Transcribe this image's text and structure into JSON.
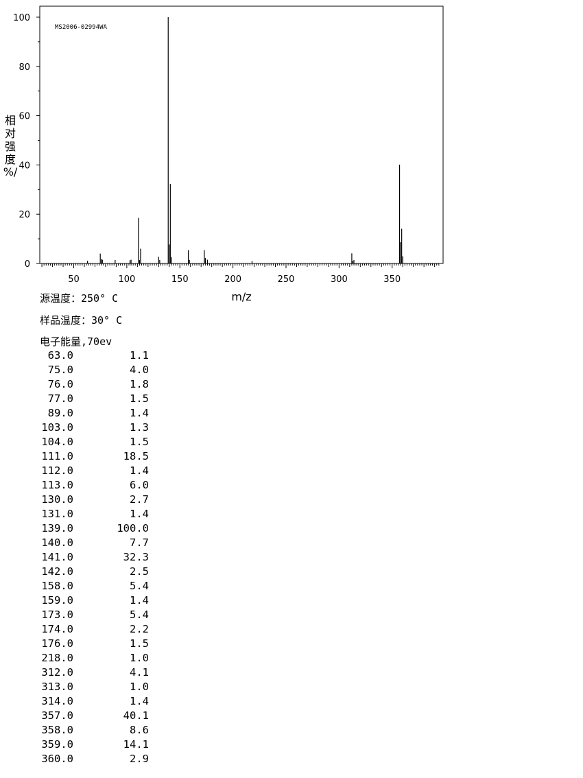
{
  "chart_data": {
    "type": "bar",
    "code_label": "MS2006-02994WA",
    "xlabel": "m/z",
    "ylabel": [
      "相",
      "对",
      "强",
      "度",
      "%/"
    ],
    "xlim": [
      18,
      398
    ],
    "ylim": [
      0,
      100
    ],
    "x_ticks": [
      50,
      100,
      150,
      200,
      250,
      300,
      350
    ],
    "y_ticks": [
      0,
      20,
      40,
      60,
      80,
      100
    ],
    "peaks": [
      {
        "mz": "63.0",
        "intensity": "1.1"
      },
      {
        "mz": "75.0",
        "intensity": "4.0"
      },
      {
        "mz": "76.0",
        "intensity": "1.8"
      },
      {
        "mz": "77.0",
        "intensity": "1.5"
      },
      {
        "mz": "89.0",
        "intensity": "1.4"
      },
      {
        "mz": "103.0",
        "intensity": "1.3"
      },
      {
        "mz": "104.0",
        "intensity": "1.5"
      },
      {
        "mz": "111.0",
        "intensity": "18.5"
      },
      {
        "mz": "112.0",
        "intensity": "1.4"
      },
      {
        "mz": "113.0",
        "intensity": "6.0"
      },
      {
        "mz": "130.0",
        "intensity": "2.7"
      },
      {
        "mz": "131.0",
        "intensity": "1.4"
      },
      {
        "mz": "139.0",
        "intensity": "100.0"
      },
      {
        "mz": "140.0",
        "intensity": "7.7"
      },
      {
        "mz": "141.0",
        "intensity": "32.3"
      },
      {
        "mz": "142.0",
        "intensity": "2.5"
      },
      {
        "mz": "158.0",
        "intensity": "5.4"
      },
      {
        "mz": "159.0",
        "intensity": "1.4"
      },
      {
        "mz": "173.0",
        "intensity": "5.4"
      },
      {
        "mz": "174.0",
        "intensity": "2.2"
      },
      {
        "mz": "176.0",
        "intensity": "1.5"
      },
      {
        "mz": "218.0",
        "intensity": "1.0"
      },
      {
        "mz": "312.0",
        "intensity": "4.1"
      },
      {
        "mz": "313.0",
        "intensity": "1.0"
      },
      {
        "mz": "314.0",
        "intensity": "1.4"
      },
      {
        "mz": "357.0",
        "intensity": "40.1"
      },
      {
        "mz": "358.0",
        "intensity": "8.6"
      },
      {
        "mz": "359.0",
        "intensity": "14.1"
      },
      {
        "mz": "360.0",
        "intensity": "2.9"
      }
    ]
  },
  "info": {
    "source_temp": "源温度：250° C",
    "sample_temp": "样品温度：30° C",
    "electron_energy": "电子能量,70ev"
  }
}
